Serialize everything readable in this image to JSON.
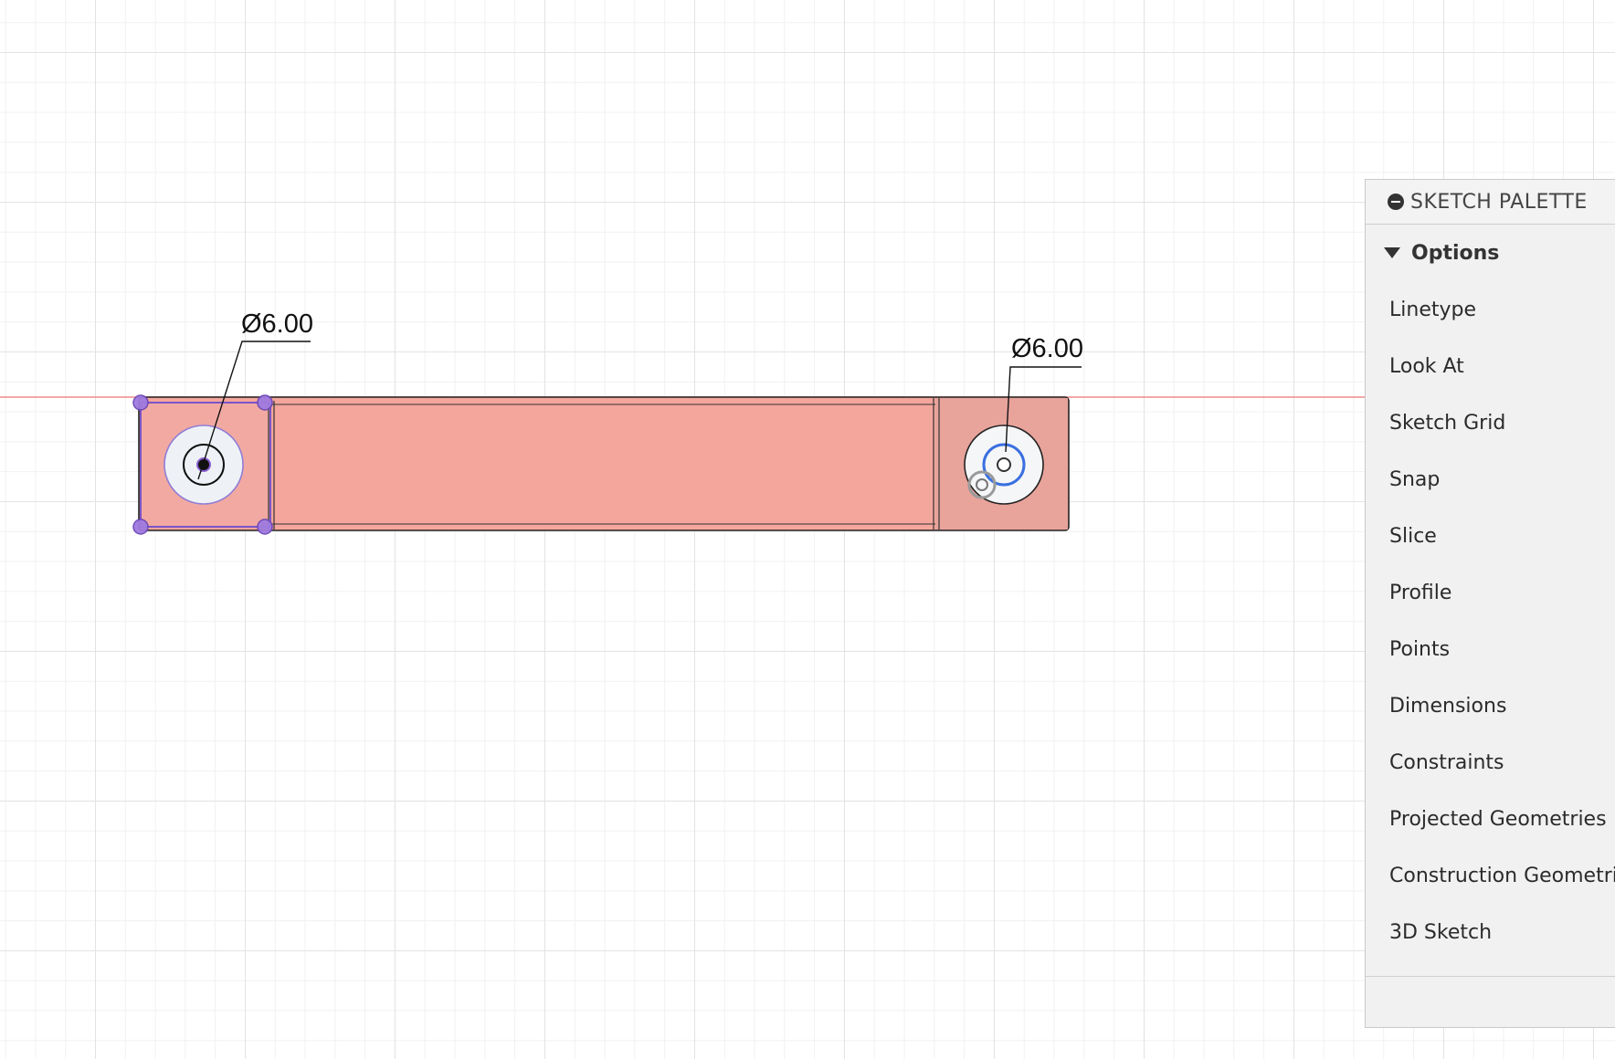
{
  "sketch": {
    "dimensions": [
      {
        "label": "Ø6.00"
      },
      {
        "label": "Ø6.00"
      }
    ]
  },
  "palette": {
    "title": "SKETCH PALETTE",
    "section_label": "Options",
    "items": [
      {
        "label": "Linetype"
      },
      {
        "label": "Look At"
      },
      {
        "label": "Sketch Grid"
      },
      {
        "label": "Snap"
      },
      {
        "label": "Slice"
      },
      {
        "label": "Profile"
      },
      {
        "label": "Points"
      },
      {
        "label": "Dimensions"
      },
      {
        "label": "Constraints"
      },
      {
        "label": "Projected Geometries"
      },
      {
        "label": "Construction Geometrie"
      },
      {
        "label": "3D Sketch"
      }
    ]
  },
  "colors": {
    "profile_fill": "#f4a59c",
    "end_block_fill": "#e8a39b",
    "selection_purple": "#8a5fd0",
    "selected_circle_blue": "#3a6fe0",
    "axis_line_red": "#f08a8a"
  }
}
